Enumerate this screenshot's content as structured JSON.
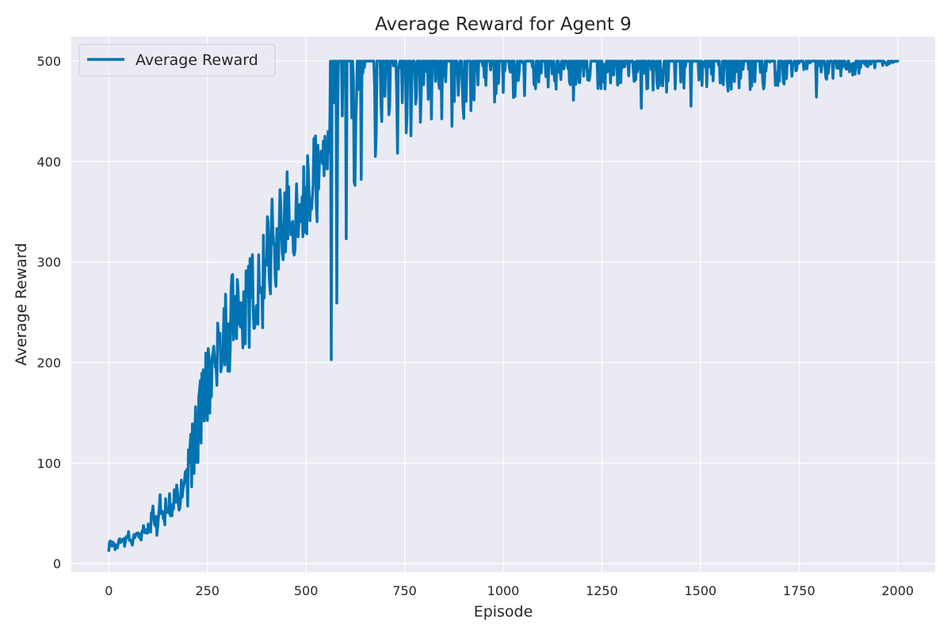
{
  "chart_data": {
    "type": "line",
    "title": "Average Reward for Agent 9",
    "xlabel": "Episode",
    "ylabel": "Average Reward",
    "xlim": [
      -95,
      2095
    ],
    "ylim": [
      -8.5,
      524.5
    ],
    "xticks": [
      0,
      250,
      500,
      750,
      1000,
      1250,
      1500,
      1750,
      2000
    ],
    "yticks": [
      0,
      100,
      200,
      300,
      400,
      500
    ],
    "grid": true,
    "legend_position": "top-left",
    "series": [
      {
        "name": "Average Reward",
        "color": "#0173b2",
        "description_points": [
          [
            0,
            18
          ],
          [
            10,
            22
          ],
          [
            20,
            16
          ],
          [
            30,
            24
          ],
          [
            40,
            20
          ],
          [
            50,
            28
          ],
          [
            60,
            22
          ],
          [
            70,
            30
          ],
          [
            80,
            25
          ],
          [
            90,
            35
          ],
          [
            100,
            30
          ],
          [
            110,
            45
          ],
          [
            120,
            38
          ],
          [
            130,
            55
          ],
          [
            140,
            50
          ],
          [
            150,
            62
          ],
          [
            160,
            55
          ],
          [
            170,
            70
          ],
          [
            180,
            65
          ],
          [
            190,
            85
          ],
          [
            200,
            80
          ],
          [
            210,
            100
          ],
          [
            220,
            120
          ],
          [
            230,
            150
          ],
          [
            240,
            160
          ],
          [
            250,
            180
          ],
          [
            260,
            175
          ],
          [
            270,
            190
          ],
          [
            280,
            210
          ],
          [
            290,
            220
          ],
          [
            300,
            240
          ],
          [
            310,
            235
          ],
          [
            320,
            250
          ],
          [
            330,
            255
          ],
          [
            340,
            260
          ],
          [
            350,
            250
          ],
          [
            360,
            270
          ],
          [
            370,
            260
          ],
          [
            380,
            265
          ],
          [
            390,
            280
          ],
          [
            400,
            300
          ],
          [
            410,
            310
          ],
          [
            420,
            320
          ],
          [
            430,
            330
          ],
          [
            440,
            340
          ],
          [
            450,
            345
          ],
          [
            460,
            355
          ],
          [
            470,
            350
          ],
          [
            480,
            360
          ],
          [
            490,
            365
          ],
          [
            500,
            370
          ],
          [
            510,
            375
          ],
          [
            520,
            380
          ],
          [
            530,
            385
          ],
          [
            540,
            390
          ],
          [
            550,
            395
          ],
          [
            560,
            400
          ],
          [
            570,
            405
          ],
          [
            580,
            410
          ],
          [
            590,
            420
          ],
          [
            600,
            430
          ],
          [
            620,
            440
          ],
          [
            640,
            445
          ],
          [
            660,
            450
          ],
          [
            680,
            455
          ],
          [
            700,
            460
          ],
          [
            720,
            465
          ],
          [
            740,
            470
          ],
          [
            760,
            468
          ],
          [
            780,
            472
          ],
          [
            800,
            475
          ],
          [
            850,
            478
          ],
          [
            900,
            482
          ],
          [
            950,
            485
          ],
          [
            1000,
            488
          ],
          [
            1100,
            490
          ],
          [
            1200,
            490
          ],
          [
            1300,
            492
          ],
          [
            1400,
            490
          ],
          [
            1500,
            492
          ],
          [
            1600,
            490
          ],
          [
            1700,
            492
          ],
          [
            1800,
            494
          ],
          [
            1900,
            495
          ],
          [
            2000,
            500
          ]
        ]
      }
    ]
  }
}
